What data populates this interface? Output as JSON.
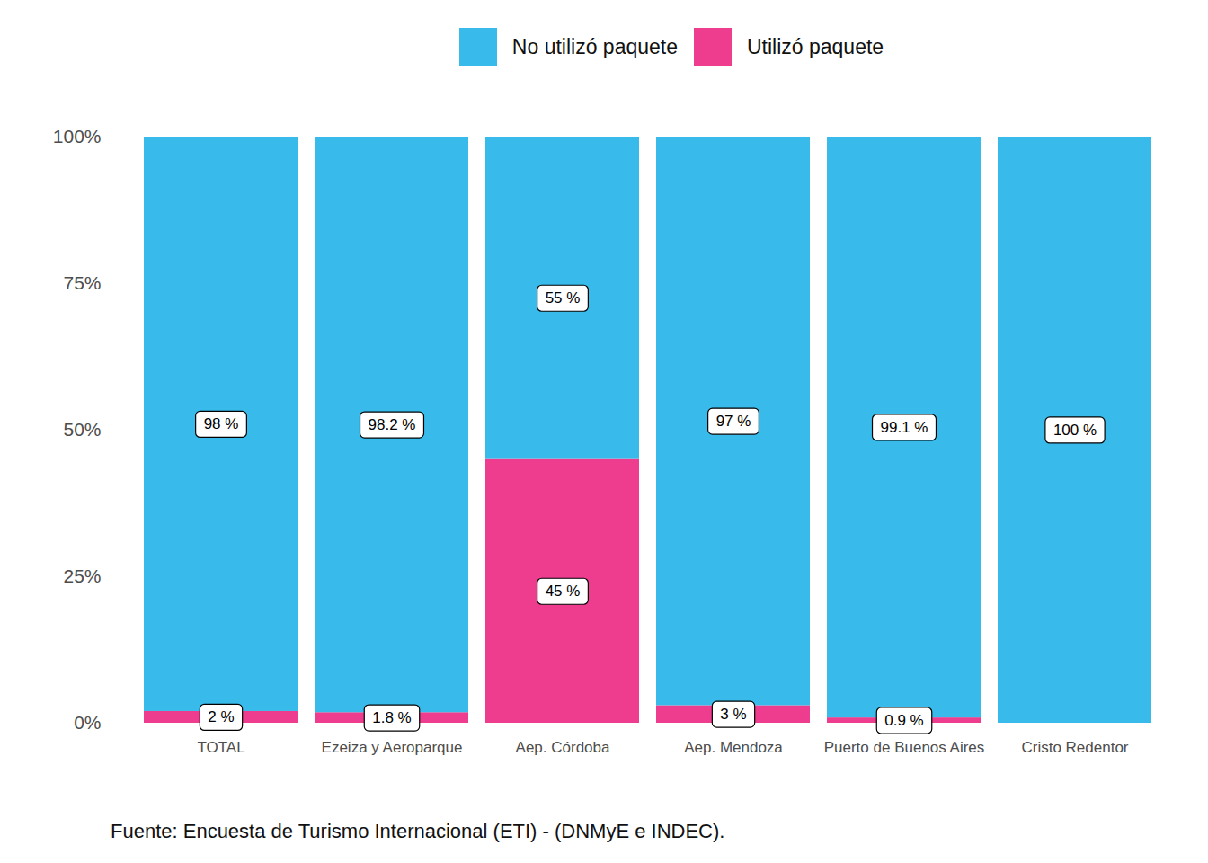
{
  "chart_data": {
    "type": "bar",
    "stacked": true,
    "data_labels": true,
    "legend": "top",
    "grid": false,
    "caption": "Fuente: Encuesta de Turismo Internacional (ETI) - (DNMyE e INDEC).",
    "categories": [
      "TOTAL",
      "Ezeiza y Aeroparque",
      "Aep. Córdoba",
      "Aep. Mendoza",
      "Puerto de Buenos Aires",
      "Cristo Redentor"
    ],
    "series": [
      {
        "name": "No utilizó paquete",
        "color": "#38bbea",
        "values": [
          98,
          98.2,
          55,
          97,
          99.1,
          100
        ],
        "value_labels": [
          "98 %",
          "98.2 %",
          "55 %",
          "97 %",
          "99.1 %",
          "100 %"
        ]
      },
      {
        "name": "Utilizó paquete",
        "color": "#ee3d8f",
        "values": [
          2,
          1.8,
          45,
          3,
          0.9,
          0
        ],
        "value_labels": [
          "2 %",
          "1.8 %",
          "45 %",
          "3 %",
          "0.9 %",
          null
        ]
      }
    ],
    "ylim": [
      0,
      100
    ],
    "yticks": [
      {
        "value": 0,
        "label": "0%"
      },
      {
        "value": 25,
        "label": "25%"
      },
      {
        "value": 50,
        "label": "50%"
      },
      {
        "value": 75,
        "label": "75%"
      },
      {
        "value": 100,
        "label": "100%"
      }
    ]
  }
}
